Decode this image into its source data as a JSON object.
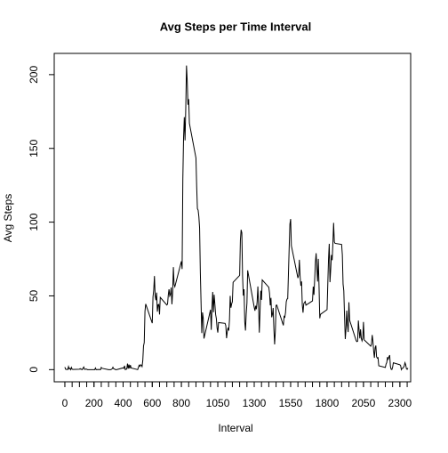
{
  "chart_data": {
    "type": "line",
    "title": "Avg Steps per Time Interval",
    "xlabel": "Interval",
    "ylabel": "Avg Steps",
    "color": "#000000",
    "x": [
      0,
      5,
      10,
      15,
      20,
      25,
      30,
      35,
      40,
      45,
      50,
      55,
      100,
      105,
      110,
      115,
      120,
      125,
      130,
      135,
      140,
      145,
      150,
      155,
      200,
      205,
      210,
      215,
      220,
      225,
      230,
      235,
      240,
      245,
      250,
      255,
      300,
      305,
      310,
      315,
      320,
      325,
      330,
      335,
      340,
      345,
      350,
      355,
      400,
      405,
      410,
      415,
      420,
      425,
      430,
      435,
      440,
      445,
      450,
      455,
      500,
      505,
      510,
      515,
      520,
      525,
      530,
      535,
      540,
      545,
      550,
      555,
      600,
      605,
      610,
      615,
      620,
      625,
      630,
      635,
      640,
      645,
      650,
      655,
      700,
      705,
      710,
      715,
      720,
      725,
      730,
      735,
      740,
      745,
      750,
      755,
      800,
      805,
      810,
      815,
      820,
      825,
      830,
      835,
      840,
      845,
      850,
      855,
      900,
      905,
      910,
      915,
      920,
      925,
      930,
      935,
      940,
      945,
      950,
      955,
      1000,
      1005,
      1010,
      1015,
      1020,
      1025,
      1030,
      1035,
      1040,
      1045,
      1050,
      1055,
      1100,
      1105,
      1110,
      1115,
      1120,
      1125,
      1130,
      1135,
      1140,
      1145,
      1150,
      1155,
      1200,
      1205,
      1210,
      1215,
      1220,
      1225,
      1230,
      1235,
      1240,
      1245,
      1250,
      1255,
      1300,
      1305,
      1310,
      1315,
      1320,
      1325,
      1330,
      1335,
      1340,
      1345,
      1350,
      1355,
      1400,
      1405,
      1410,
      1415,
      1420,
      1425,
      1430,
      1435,
      1440,
      1445,
      1450,
      1455,
      1500,
      1505,
      1510,
      1515,
      1520,
      1525,
      1530,
      1535,
      1540,
      1545,
      1550,
      1555,
      1600,
      1605,
      1610,
      1615,
      1620,
      1625,
      1630,
      1635,
      1640,
      1645,
      1650,
      1655,
      1700,
      1705,
      1710,
      1715,
      1720,
      1725,
      1730,
      1735,
      1740,
      1745,
      1750,
      1755,
      1800,
      1805,
      1810,
      1815,
      1820,
      1825,
      1830,
      1835,
      1840,
      1845,
      1850,
      1855,
      1900,
      1905,
      1910,
      1915,
      1920,
      1925,
      1930,
      1935,
      1940,
      1945,
      1950,
      1955,
      2000,
      2005,
      2010,
      2015,
      2020,
      2025,
      2030,
      2035,
      2040,
      2045,
      2050,
      2055,
      2100,
      2105,
      2110,
      2115,
      2120,
      2125,
      2130,
      2135,
      2140,
      2145,
      2150,
      2155,
      2200,
      2205,
      2210,
      2215,
      2220,
      2225,
      2230,
      2235,
      2240,
      2245,
      2250,
      2255,
      2300,
      2305,
      2310,
      2315,
      2320,
      2325,
      2330,
      2335,
      2340,
      2345,
      2350,
      2355
    ],
    "values": [
      1.7,
      0.3,
      0.1,
      0.2,
      0.1,
      2.1,
      0.5,
      0.9,
      0,
      1.5,
      0.3,
      0.1,
      0.3,
      0.7,
      0.2,
      0.3,
      0,
      1.1,
      1.8,
      0.2,
      0.2,
      0.4,
      0.3,
      0,
      0,
      0,
      1.1,
      0,
      0,
      0.1,
      0,
      0.2,
      0,
      0,
      1.5,
      0.9,
      0,
      0,
      0,
      0,
      0.2,
      0.6,
      1.6,
      0.6,
      0.5,
      0.1,
      0,
      0,
      1.2,
      0.9,
      2.6,
      0,
      0.3,
      0.4,
      4.1,
      0.7,
      3.5,
      0.8,
      3.1,
      1.1,
      0,
      1.6,
      3,
      2.2,
      3.3,
      3,
      2.1,
      6.1,
      16,
      18.3,
      39.5,
      44.5,
      31.5,
      49.3,
      53.8,
      63.5,
      50,
      47.1,
      52.2,
      39.3,
      44,
      44.2,
      37.4,
      49,
      43.8,
      44.4,
      50.5,
      54.5,
      49.9,
      51,
      55.7,
      44.3,
      52.3,
      69.5,
      57.8,
      56.2,
      73.4,
      68.2,
      129.4,
      157.5,
      171.2,
      155.4,
      177.3,
      206.2,
      195.9,
      179.6,
      183.4,
      167,
      143.5,
      124,
      109.1,
      108.1,
      103.7,
      96,
      66.2,
      45.2,
      24.8,
      38.8,
      35,
      21.1,
      40.6,
      27,
      42.4,
      52.7,
      38.9,
      50.8,
      44.3,
      37.4,
      34.7,
      28.3,
      25.1,
      31.9,
      31.4,
      29.7,
      21.3,
      25.5,
      28.4,
      26.5,
      33.4,
      50,
      42,
      44.6,
      46,
      59.2,
      63.9,
      87.7,
      94.8,
      92.8,
      63.4,
      50.2,
      54.5,
      32.4,
      26.5,
      37.7,
      45.1,
      67.3,
      42.3,
      39.9,
      43.3,
      41,
      46.2,
      56.4,
      42.8,
      25.1,
      40,
      53.5,
      47.3,
      60.8,
      55.8,
      52,
      43.6,
      48.7,
      35.5,
      37.5,
      41.8,
      27.5,
      17.1,
      26.1,
      43.6,
      43.8,
      30,
      36.1,
      35.5,
      38.8,
      46,
      47.8,
      48.1,
      65.3,
      82.9,
      98.7,
      102.1,
      84,
      62.1,
      64.1,
      74.5,
      63.2,
      56.9,
      59.8,
      43.9,
      38.6,
      44.7,
      45.5,
      46.2,
      43.7,
      46.6,
      56.3,
      50.7,
      61.2,
      72.7,
      78.9,
      68.9,
      59.7,
      75.1,
      56.5,
      34.8,
      37.5,
      40.7,
      58,
      74.7,
      85.3,
      59.3,
      67.8,
      77.7,
      74.2,
      85.3,
      99.5,
      86.6,
      85.6,
      84.9,
      77.8,
      58,
      53.4,
      36.3,
      20.7,
      27.4,
      40,
      30.2,
      25.5,
      45.7,
      33.5,
      19.6,
      19,
      19.3,
      33.3,
      26.8,
      21.2,
      27.3,
      21.3,
      19.5,
      21.3,
      32.3,
      20.2,
      15.9,
      17.2,
      23.5,
      19.2,
      12.5,
      8,
      14.7,
      16.3,
      8.7,
      7.8,
      8.1,
      2.6,
      1.5,
      3.7,
      4.8,
      8.5,
      7.1,
      8.7,
      9.8,
      2.2,
      0.3,
      0.1,
      1.6,
      4.6,
      3.3,
      2.8,
      0,
      0.8,
      1,
      1.6,
      2.6,
      4.7,
      3.3,
      0.6,
      0.2,
      1.1
    ],
    "xlim": [
      -73,
      2374
    ],
    "xticks": [
      0,
      200,
      400,
      600,
      800,
      1050,
      1300,
      1550,
      1800,
      2050,
      2300
    ],
    "xminor_ticks": [
      0,
      50,
      100,
      150,
      200,
      250,
      300,
      350,
      400,
      450,
      500,
      550,
      600,
      650,
      700,
      750,
      800,
      850,
      900,
      950,
      1000,
      1050,
      1100,
      1150,
      1200,
      1250,
      1300,
      1350,
      1400,
      1450,
      1500,
      1550,
      1600,
      1650,
      1700,
      1750,
      1800,
      1850,
      1900,
      1950,
      2000,
      2050,
      2100,
      2150,
      2200,
      2250,
      2300,
      2350
    ],
    "ylim": [
      -8.25,
      214.4
    ],
    "yticks": [
      0,
      50,
      100,
      150,
      200
    ]
  }
}
